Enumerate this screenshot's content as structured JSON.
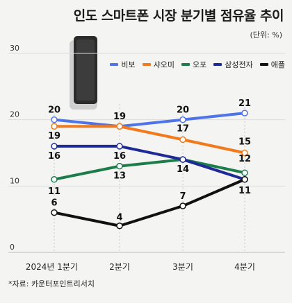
{
  "title": "인도 스마트폰 시장 분기별 점유율 추이",
  "unit_label": "(단위: %)",
  "source": "*자료: 카운터포인트리서치",
  "chart_data": {
    "type": "line",
    "title": "인도 스마트폰 시장 분기별 점유율 추이",
    "categories": [
      "2024년 1분기",
      "2분기",
      "3분기",
      "4분기"
    ],
    "ylim": [
      0,
      30
    ],
    "yticks": [
      0,
      10,
      20,
      30
    ],
    "grid": true,
    "legend": "top-right",
    "series": [
      {
        "name": "비보",
        "color": "#4f74e8",
        "values": [
          20,
          19,
          20,
          21
        ]
      },
      {
        "name": "샤오미",
        "color": "#f07a1c",
        "values": [
          19,
          19,
          17,
          15
        ]
      },
      {
        "name": "오포",
        "color": "#1c7d4a",
        "values": [
          11,
          13,
          14,
          12
        ]
      },
      {
        "name": "삼성전자",
        "color": "#1e2a96",
        "values": [
          16,
          16,
          14,
          11
        ]
      },
      {
        "name": "애플",
        "color": "#111111",
        "values": [
          6,
          4,
          7,
          11
        ]
      }
    ]
  }
}
